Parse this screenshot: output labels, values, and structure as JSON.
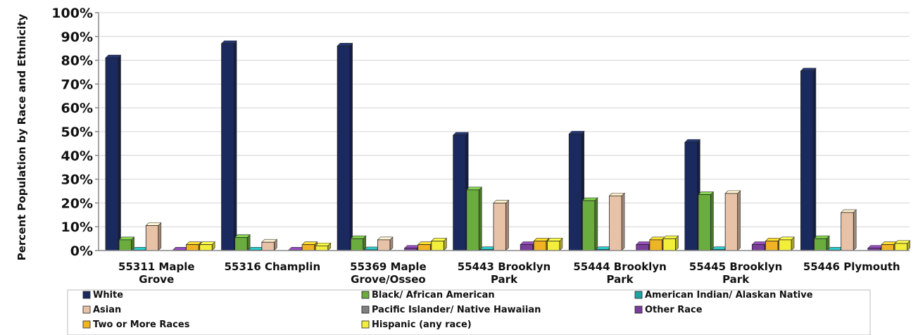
{
  "chart_data": {
    "type": "bar",
    "title": "",
    "xlabel": "",
    "ylabel": "Percent Population by Race and Ethnicity",
    "ylim": [
      0,
      100
    ],
    "ytick_labels": [
      "0%",
      "10%",
      "20%",
      "30%",
      "40%",
      "50%",
      "60%",
      "70%",
      "80%",
      "90%",
      "100%"
    ],
    "grid": true,
    "legend_position": "bottom",
    "categories": [
      [
        "55311 Maple",
        "Grove"
      ],
      [
        "55316 Champlin"
      ],
      [
        "55369 Maple",
        "Grove/Osseo"
      ],
      [
        "55443 Brooklyn",
        "Park"
      ],
      [
        "55444 Brooklyn",
        "Park"
      ],
      [
        "55445 Brooklyn",
        "Park"
      ],
      [
        "55446 Plymouth"
      ]
    ],
    "series": [
      {
        "name": "White",
        "color": "#1b2a5e",
        "values": [
          81,
          87,
          86,
          48.5,
          49,
          45.5,
          75.5
        ]
      },
      {
        "name": "Black/ African American",
        "color": "#6aac3e",
        "values": [
          4.5,
          5.5,
          5,
          25.5,
          21,
          23.5,
          5
        ]
      },
      {
        "name": "American Indian/ Alaskan Native",
        "color": "#1fa3a3",
        "values": [
          0.2,
          0.2,
          0.3,
          0.4,
          0.4,
          0.4,
          0.2
        ]
      },
      {
        "name": "Asian",
        "color": "#e8c2a6",
        "values": [
          10.5,
          3.5,
          4.5,
          20,
          23,
          24,
          16
        ]
      },
      {
        "name": "Pacific Islander/ Native Hawaiian",
        "color": "#808080",
        "values": [
          0,
          0,
          0,
          0,
          0,
          0,
          0
        ]
      },
      {
        "name": "Other Race",
        "color": "#7a3d9a",
        "values": [
          0.2,
          0.2,
          1,
          2.5,
          2.5,
          2.5,
          1
        ]
      },
      {
        "name": "Two or More Races",
        "color": "#f0b323",
        "values": [
          2.5,
          2.5,
          2.5,
          4,
          4.5,
          4,
          2.5
        ]
      },
      {
        "name": "Hispanic (any race)",
        "color": "#f3ee3a",
        "values": [
          2.5,
          2,
          4,
          4,
          5,
          4.5,
          3
        ]
      }
    ]
  }
}
